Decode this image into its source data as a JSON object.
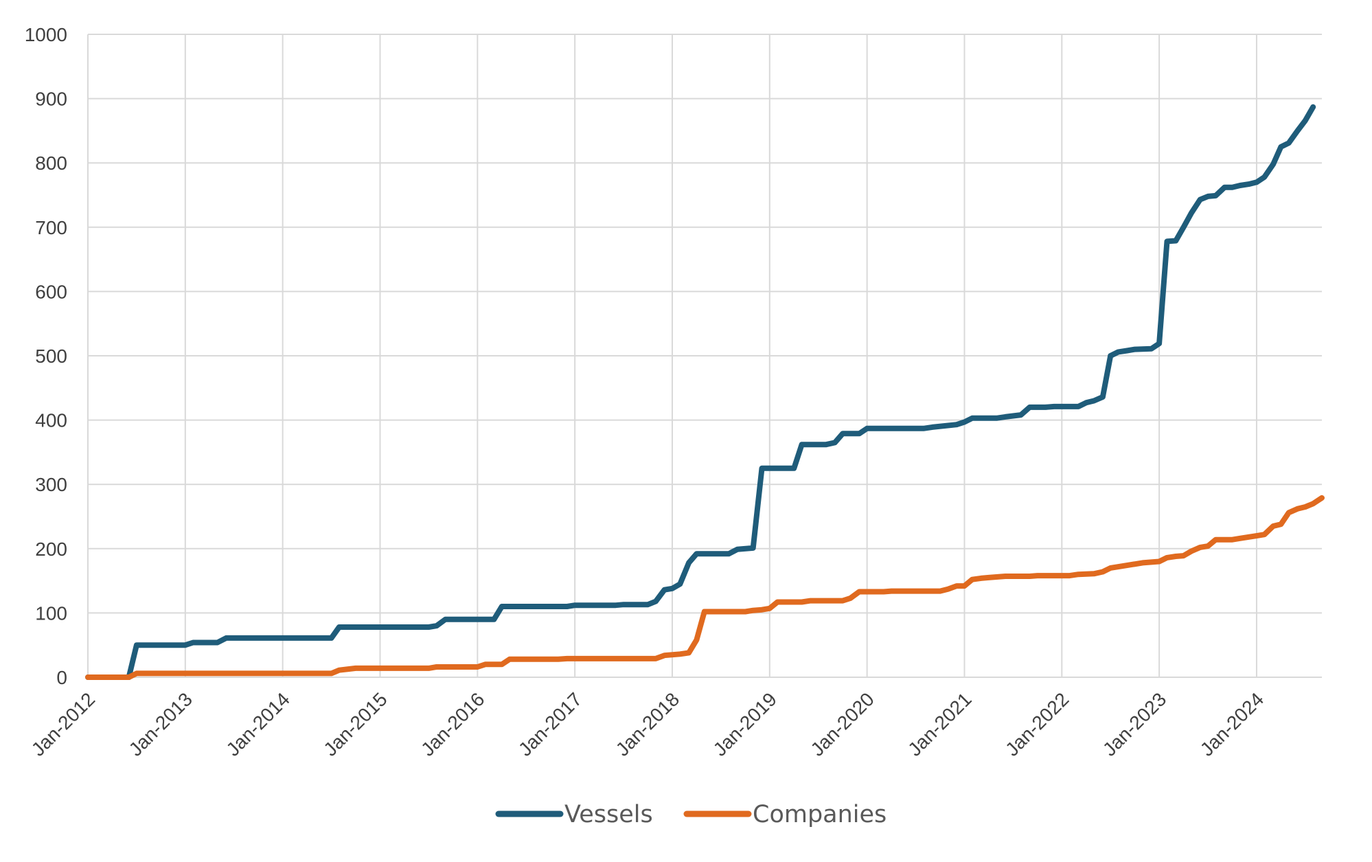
{
  "chart_data": {
    "type": "line",
    "title": "",
    "xlabel": "",
    "ylabel": "",
    "ylim": [
      0,
      1000
    ],
    "yticks": [
      0,
      100,
      200,
      300,
      400,
      500,
      600,
      700,
      800,
      900,
      1000
    ],
    "xlim": [
      2012.0,
      2024.5
    ],
    "xticks": [
      {
        "value": 2012,
        "label": "Jan-2012"
      },
      {
        "value": 2013,
        "label": "Jan-2013"
      },
      {
        "value": 2014,
        "label": "Jan-2014"
      },
      {
        "value": 2015,
        "label": "Jan-2015"
      },
      {
        "value": 2016,
        "label": "Jan-2016"
      },
      {
        "value": 2017,
        "label": "Jan-2017"
      },
      {
        "value": 2018,
        "label": "Jan-2018"
      },
      {
        "value": 2019,
        "label": "Jan-2019"
      },
      {
        "value": 2020,
        "label": "Jan-2020"
      },
      {
        "value": 2021,
        "label": "Jan-2021"
      },
      {
        "value": 2022,
        "label": "Jan-2022"
      },
      {
        "value": 2023,
        "label": "Jan-2023"
      },
      {
        "value": 2024,
        "label": "Jan-2024"
      }
    ],
    "grid": true,
    "legend_position": "bottom",
    "series": [
      {
        "name": "Vessels",
        "color": "#1f5c7a",
        "points": [
          [
            2012.0,
            0
          ],
          [
            2012.42,
            0
          ],
          [
            2012.5,
            50
          ],
          [
            2013.0,
            50
          ],
          [
            2013.08,
            54
          ],
          [
            2013.33,
            54
          ],
          [
            2013.42,
            61
          ],
          [
            2014.0,
            61
          ],
          [
            2014.5,
            61
          ],
          [
            2014.58,
            78
          ],
          [
            2015.0,
            78
          ],
          [
            2015.5,
            78
          ],
          [
            2015.58,
            80
          ],
          [
            2015.67,
            90
          ],
          [
            2016.0,
            90
          ],
          [
            2016.17,
            90
          ],
          [
            2016.25,
            110
          ],
          [
            2016.92,
            110
          ],
          [
            2017.0,
            112
          ],
          [
            2017.42,
            112
          ],
          [
            2017.5,
            113
          ],
          [
            2017.75,
            113
          ],
          [
            2017.83,
            118
          ],
          [
            2017.92,
            136
          ],
          [
            2018.0,
            138
          ],
          [
            2018.08,
            145
          ],
          [
            2018.17,
            178
          ],
          [
            2018.25,
            192
          ],
          [
            2018.58,
            192
          ],
          [
            2018.67,
            199
          ],
          [
            2018.83,
            201
          ],
          [
            2018.92,
            325
          ],
          [
            2019.25,
            325
          ],
          [
            2019.33,
            362
          ],
          [
            2019.58,
            362
          ],
          [
            2019.67,
            365
          ],
          [
            2019.75,
            379
          ],
          [
            2019.92,
            379
          ],
          [
            2020.0,
            387
          ],
          [
            2020.58,
            387
          ],
          [
            2020.67,
            389
          ],
          [
            2020.92,
            393
          ],
          [
            2021.0,
            397
          ],
          [
            2021.08,
            403
          ],
          [
            2021.33,
            403
          ],
          [
            2021.42,
            405
          ],
          [
            2021.58,
            408
          ],
          [
            2021.67,
            420
          ],
          [
            2021.83,
            420
          ],
          [
            2021.92,
            421
          ],
          [
            2022.17,
            421
          ],
          [
            2022.25,
            427
          ],
          [
            2022.33,
            430
          ],
          [
            2022.42,
            436
          ],
          [
            2022.5,
            500
          ],
          [
            2022.58,
            506
          ],
          [
            2022.67,
            508
          ],
          [
            2022.75,
            510
          ],
          [
            2022.92,
            511
          ],
          [
            2023.0,
            519
          ],
          [
            2023.08,
            678
          ],
          [
            2023.17,
            679
          ],
          [
            2023.25,
            700
          ],
          [
            2023.33,
            722
          ],
          [
            2023.42,
            743
          ],
          [
            2023.5,
            748
          ],
          [
            2023.58,
            749
          ],
          [
            2023.67,
            762
          ],
          [
            2023.75,
            762
          ],
          [
            2023.83,
            765
          ],
          [
            2023.92,
            767
          ],
          [
            2024.0,
            770
          ],
          [
            2024.08,
            778
          ],
          [
            2024.17,
            798
          ],
          [
            2024.25,
            825
          ],
          [
            2024.33,
            831
          ],
          [
            2024.42,
            850
          ],
          [
            2024.5,
            866
          ],
          [
            2024.58,
            887
          ]
        ]
      },
      {
        "name": "Companies",
        "color": "#e06a1f",
        "points": [
          [
            2012.0,
            0
          ],
          [
            2012.42,
            0
          ],
          [
            2012.5,
            6
          ],
          [
            2014.5,
            6
          ],
          [
            2014.58,
            11
          ],
          [
            2014.75,
            14
          ],
          [
            2015.5,
            14
          ],
          [
            2015.58,
            16
          ],
          [
            2016.0,
            16
          ],
          [
            2016.08,
            20
          ],
          [
            2016.25,
            20
          ],
          [
            2016.33,
            28
          ],
          [
            2016.83,
            28
          ],
          [
            2016.92,
            29
          ],
          [
            2017.83,
            29
          ],
          [
            2017.92,
            34
          ],
          [
            2018.08,
            36
          ],
          [
            2018.17,
            38
          ],
          [
            2018.25,
            58
          ],
          [
            2018.33,
            102
          ],
          [
            2018.75,
            102
          ],
          [
            2018.83,
            104
          ],
          [
            2018.92,
            105
          ],
          [
            2019.0,
            107
          ],
          [
            2019.08,
            117
          ],
          [
            2019.33,
            117
          ],
          [
            2019.42,
            119
          ],
          [
            2019.75,
            119
          ],
          [
            2019.83,
            123
          ],
          [
            2019.92,
            133
          ],
          [
            2020.17,
            133
          ],
          [
            2020.25,
            134
          ],
          [
            2020.75,
            134
          ],
          [
            2020.83,
            137
          ],
          [
            2020.92,
            142
          ],
          [
            2021.0,
            142
          ],
          [
            2021.08,
            152
          ],
          [
            2021.17,
            154
          ],
          [
            2021.25,
            155
          ],
          [
            2021.42,
            157
          ],
          [
            2021.67,
            157
          ],
          [
            2021.75,
            158
          ],
          [
            2022.08,
            158
          ],
          [
            2022.17,
            160
          ],
          [
            2022.33,
            161
          ],
          [
            2022.42,
            164
          ],
          [
            2022.5,
            170
          ],
          [
            2022.67,
            174
          ],
          [
            2022.83,
            178
          ],
          [
            2023.0,
            180
          ],
          [
            2023.08,
            186
          ],
          [
            2023.17,
            188
          ],
          [
            2023.25,
            189
          ],
          [
            2023.33,
            196
          ],
          [
            2023.42,
            202
          ],
          [
            2023.5,
            204
          ],
          [
            2023.58,
            214
          ],
          [
            2023.75,
            214
          ],
          [
            2023.83,
            216
          ],
          [
            2024.0,
            220
          ],
          [
            2024.08,
            222
          ],
          [
            2024.17,
            235
          ],
          [
            2024.25,
            238
          ],
          [
            2024.33,
            256
          ],
          [
            2024.42,
            262
          ],
          [
            2024.5,
            265
          ],
          [
            2024.58,
            270
          ],
          [
            2024.67,
            279
          ]
        ]
      }
    ]
  }
}
